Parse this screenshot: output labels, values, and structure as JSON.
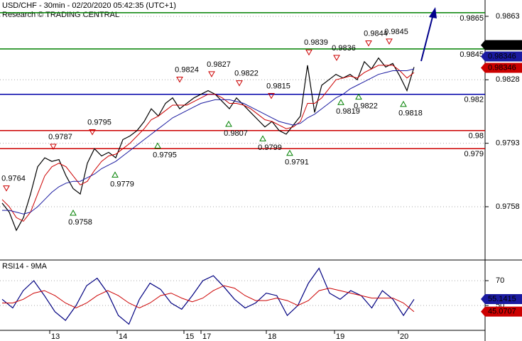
{
  "chart_data": [
    {
      "type": "line",
      "title": "USD/CHF - 30min - 02/20/2020 05:42:35 (UTC+1)",
      "subtitle": "Research © TRADING CENTRAL",
      "series": [
        {
          "color": "#000000",
          "values": [
            0.976,
            0.9755,
            0.9745,
            0.9752,
            0.9765,
            0.978,
            0.9785,
            0.9783,
            0.9784,
            0.9775,
            0.9768,
            0.9765,
            0.9782,
            0.979,
            0.9786,
            0.9788,
            0.9785,
            0.9795,
            0.9797,
            0.98,
            0.9805,
            0.9812,
            0.9808,
            0.9815,
            0.9818,
            0.9812,
            0.9815,
            0.9818,
            0.982,
            0.9822,
            0.982,
            0.9816,
            0.9812,
            0.9818,
            0.9814,
            0.981,
            0.9806,
            0.9802,
            0.9805,
            0.98,
            0.9798,
            0.9803,
            0.9808,
            0.9836,
            0.981,
            0.9825,
            0.9828,
            0.9831,
            0.9829,
            0.9831,
            0.9828,
            0.9838,
            0.9834,
            0.984,
            0.9835,
            0.9837,
            0.983,
            0.9822,
            0.9835
          ]
        },
        {
          "color": "#cc0000",
          "values": [
            0.9762,
            0.9758,
            0.9752,
            0.975,
            0.9755,
            0.9765,
            0.9775,
            0.978,
            0.9782,
            0.978,
            0.9775,
            0.977,
            0.9772,
            0.9778,
            0.9783,
            0.9786,
            0.9787,
            0.979,
            0.9793,
            0.9797,
            0.9801,
            0.9806,
            0.9808,
            0.9811,
            0.9814,
            0.9814,
            0.9814,
            0.9816,
            0.9818,
            0.982,
            0.982,
            0.9818,
            0.9815,
            0.9815,
            0.9814,
            0.9812,
            0.9809,
            0.9806,
            0.9805,
            0.9803,
            0.9801,
            0.9802,
            0.9805,
            0.9815,
            0.9815,
            0.9818,
            0.9823,
            0.9828,
            0.9829,
            0.983,
            0.9829,
            0.9832,
            0.9834,
            0.9836,
            0.9836,
            0.9836,
            0.9833,
            0.9829,
            0.9832
          ]
        },
        {
          "color": "#1a1aa0",
          "values": [
            0.9756,
            0.9756,
            0.9755,
            0.9754,
            0.9755,
            0.9758,
            0.9762,
            0.9766,
            0.9769,
            0.9771,
            0.9772,
            0.9772,
            0.9774,
            0.9776,
            0.9779,
            0.9781,
            0.9783,
            0.9786,
            0.9789,
            0.9792,
            0.9795,
            0.9798,
            0.9801,
            0.9804,
            0.9807,
            0.9809,
            0.9811,
            0.9813,
            0.9815,
            0.9816,
            0.9817,
            0.9817,
            0.9817,
            0.9816,
            0.9815,
            0.9813,
            0.9811,
            0.9809,
            0.9807,
            0.9805,
            0.9804,
            0.9803,
            0.9804,
            0.9807,
            0.9809,
            0.9812,
            0.9815,
            0.9818,
            0.982,
            0.9823,
            0.9825,
            0.9827,
            0.9829,
            0.9831,
            0.9832,
            0.9833,
            0.9833,
            0.9833,
            0.9834
          ]
        }
      ],
      "ylim": [
        0.9729,
        0.9872
      ],
      "yticks": [
        0.9758,
        0.9793,
        0.9828,
        0.9863
      ],
      "grid": true,
      "levels": [
        {
          "value": 0.9865,
          "color": "#008000"
        },
        {
          "value": 0.9845,
          "color": "#008000"
        },
        {
          "value": 0.982,
          "color": "#0000aa"
        },
        {
          "value": 0.98,
          "color": "#cc0000"
        },
        {
          "value": 0.979,
          "color": "#cc0000"
        }
      ],
      "annotations": [
        {
          "value": 0.9764,
          "kind": "high"
        },
        {
          "value": 0.9758,
          "kind": "low"
        },
        {
          "value": 0.9787,
          "kind": "high"
        },
        {
          "value": 0.9795,
          "kind": "high"
        },
        {
          "value": 0.9779,
          "kind": "low"
        },
        {
          "value": 0.9795,
          "kind": "low"
        },
        {
          "value": 0.9824,
          "kind": "high"
        },
        {
          "value": 0.9827,
          "kind": "high"
        },
        {
          "value": 0.9822,
          "kind": "high"
        },
        {
          "value": 0.9807,
          "kind": "low"
        },
        {
          "value": 0.9815,
          "kind": "high"
        },
        {
          "value": 0.9799,
          "kind": "low"
        },
        {
          "value": 0.9791,
          "kind": "low"
        },
        {
          "value": 0.9839,
          "kind": "high"
        },
        {
          "value": 0.9836,
          "kind": "high"
        },
        {
          "value": 0.9819,
          "kind": "low"
        },
        {
          "value": 0.9822,
          "kind": "low"
        },
        {
          "value": 0.9844,
          "kind": "high"
        },
        {
          "value": 0.9845,
          "kind": "high"
        },
        {
          "value": 0.9818,
          "kind": "low"
        }
      ],
      "value_boxes": [
        {
          "value": 0.98376,
          "color": "#000000"
        },
        {
          "value": 0.98346,
          "color": "#1a1aa0"
        },
        {
          "value": 0.98346,
          "color": "#cc0000"
        }
      ]
    },
    {
      "type": "line",
      "title": "RSI14 - 9MA",
      "series": [
        {
          "color": "#000080",
          "values": [
            55,
            48,
            62,
            70,
            58,
            45,
            38,
            50,
            66,
            72,
            60,
            42,
            35,
            55,
            68,
            63,
            52,
            47,
            58,
            70,
            74,
            65,
            55,
            48,
            52,
            60,
            58,
            42,
            50,
            68,
            80,
            60,
            55,
            62,
            58,
            48,
            62,
            55,
            42,
            55
          ]
        },
        {
          "color": "#cc0000",
          "values": [
            52,
            52,
            55,
            60,
            62,
            58,
            52,
            48,
            52,
            58,
            62,
            58,
            52,
            48,
            52,
            58,
            60,
            56,
            53,
            56,
            62,
            66,
            64,
            58,
            54,
            54,
            56,
            54,
            50,
            54,
            62,
            64,
            62,
            60,
            58,
            56,
            56,
            56,
            52,
            45
          ]
        }
      ],
      "ylim": [
        30,
        85.5
      ],
      "yticks": [
        50,
        70
      ],
      "grid": true,
      "value_boxes": [
        {
          "value": 55.1415,
          "color": "#1a1aa0"
        },
        {
          "value": 45.0707,
          "color": "#cc0000"
        }
      ],
      "x_labels": [
        "13",
        "14",
        "15",
        "17",
        "18",
        "19",
        "20"
      ]
    }
  ]
}
